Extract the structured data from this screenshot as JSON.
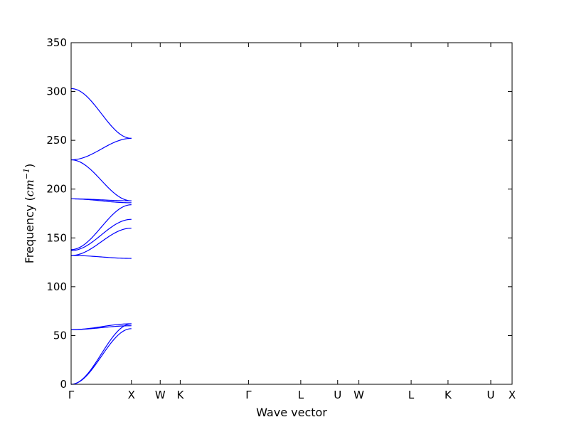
{
  "chart_data": {
    "type": "line",
    "title": "",
    "xlabel": "Wave vector",
    "ylabel": "Frequency (",
    "ylabel_unit": "cm",
    "ylabel_exp": "−1",
    "ylabel_close": ")",
    "ylim": [
      0,
      350
    ],
    "yticks": [
      "0",
      "50",
      "100",
      "150",
      "200",
      "250",
      "300",
      "350"
    ],
    "y_tick_values": [
      0,
      50,
      100,
      150,
      200,
      250,
      300,
      350
    ],
    "x_tick_values": [
      0,
      0.2773,
      0.4097,
      0.5018,
      0.8158,
      1.0562,
      1.2259,
      1.3235,
      1.5639,
      1.7335,
      1.9301,
      2.0282
    ],
    "x_tick_labels": [
      "Γ",
      "X",
      "W",
      "K",
      "Γ",
      "L",
      "U",
      "W",
      "L",
      "K",
      "U",
      "X"
    ],
    "xlim": [
      0,
      2.0282
    ],
    "grid": false,
    "line_color": "#0000ff",
    "segments": [
      {
        "from": "Γ",
        "to": "X",
        "series": [
          {
            "values": [
              0,
              62
            ]
          },
          {
            "values": [
              0,
              57
            ]
          },
          {
            "values": [
              56,
              62
            ]
          },
          {
            "values": [
              56,
              60
            ]
          },
          {
            "values": [
              132,
              129
            ]
          },
          {
            "values": [
              132,
              160
            ]
          },
          {
            "values": [
              137,
              169
            ]
          },
          {
            "values": [
              138,
              184
            ]
          },
          {
            "values": [
              190,
              186
            ]
          },
          {
            "values": [
              190,
              188
            ]
          },
          {
            "values": [
              230,
              188
            ]
          },
          {
            "values": [
              230,
              252
            ]
          },
          {
            "values": [
              303,
              252
            ]
          }
        ]
      }
    ]
  }
}
